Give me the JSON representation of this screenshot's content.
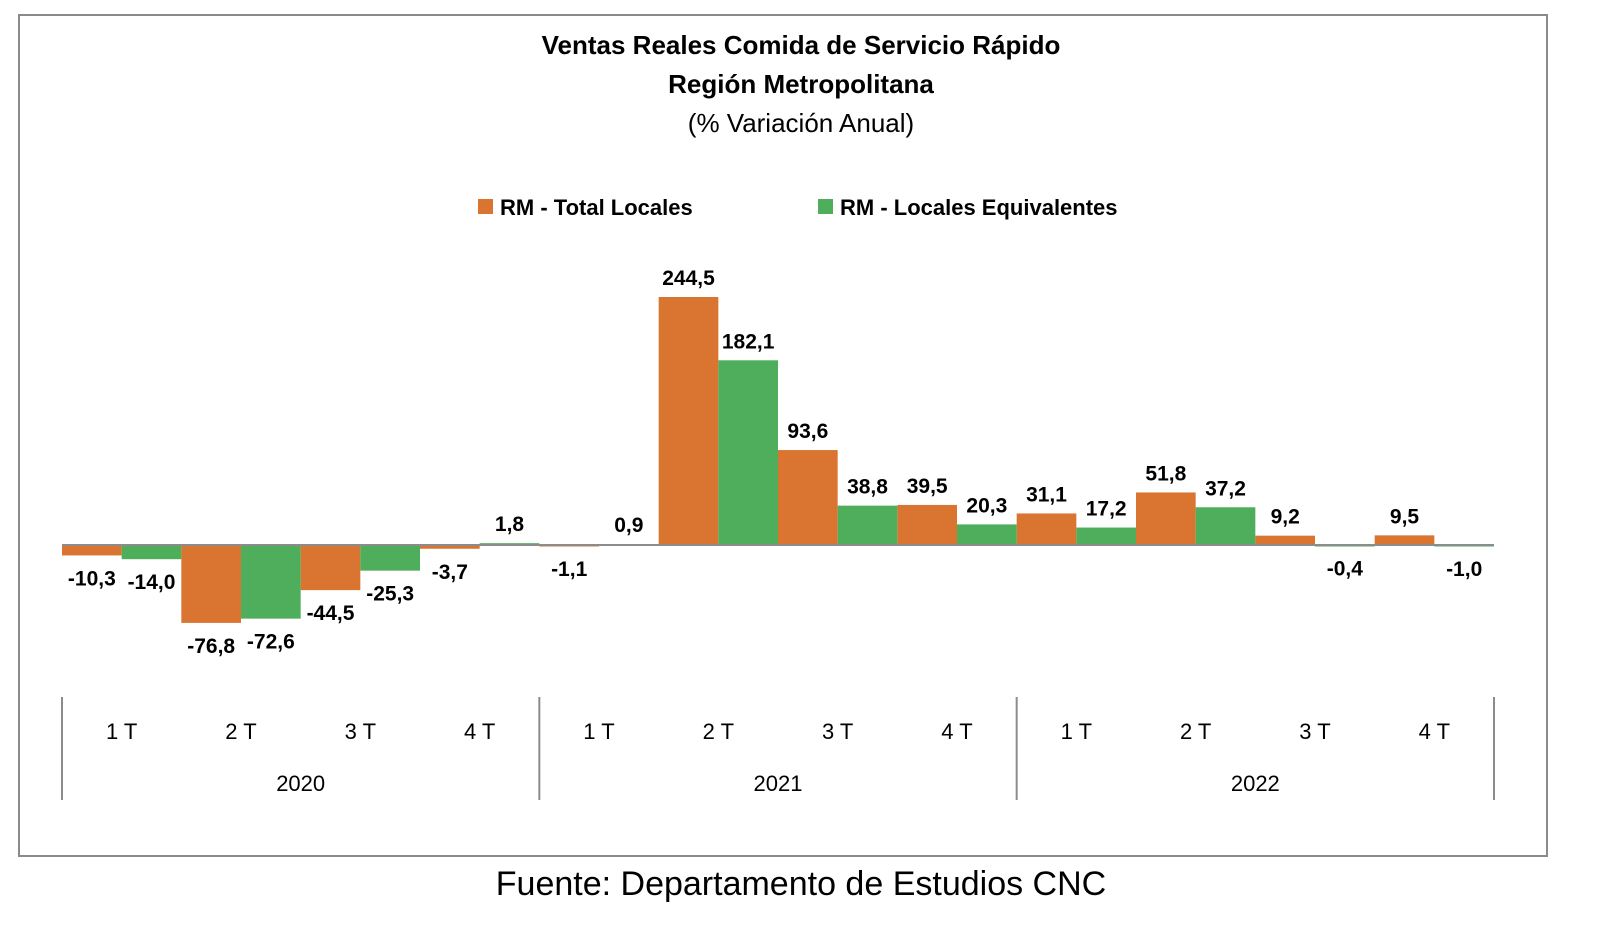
{
  "chart_data": {
    "type": "bar",
    "title": "Ventas Reales Comida de Servicio Rápido",
    "title_line2": "Región Metropolitana",
    "subtitle": "(% Variación Anual)",
    "legend_position": "top-center",
    "grid": false,
    "categories": [
      "1 T",
      "2 T",
      "3 T",
      "4 T",
      "1 T",
      "2 T",
      "3 T",
      "4 T",
      "1 T",
      "2 T",
      "3 T",
      "4 T"
    ],
    "groups": [
      {
        "label": "2020",
        "span": 4
      },
      {
        "label": "2021",
        "span": 4
      },
      {
        "label": "2022",
        "span": 4
      }
    ],
    "ylim": [
      -110,
      280
    ],
    "series": [
      {
        "name": "RM - Total Locales",
        "color": "#D97431",
        "values": [
          -10.3,
          -76.8,
          -44.5,
          -3.7,
          -1.1,
          244.5,
          93.6,
          39.5,
          31.1,
          51.8,
          9.2,
          9.5
        ],
        "labels": [
          "-10,3",
          "-76,8",
          "-44,5",
          "-3,7",
          "-1,1",
          "244,5",
          "93,6",
          "39,5",
          "31,1",
          "51,8",
          "9,2",
          "9,5"
        ]
      },
      {
        "name": "RM - Locales Equivalentes",
        "color": "#4EAE5B",
        "values": [
          -14.0,
          -72.6,
          -25.3,
          1.8,
          0.9,
          182.1,
          38.8,
          20.3,
          17.2,
          37.2,
          -0.4,
          -1.0
        ],
        "labels": [
          "-14,0",
          "-72,6",
          "-25,3",
          "1,8",
          "0,9",
          "182,1",
          "38,8",
          "20,3",
          "17,2",
          "37,2",
          "-0,4",
          "-1,0"
        ]
      }
    ]
  },
  "source_note": "Fuente: Departamento de Estudios CNC"
}
